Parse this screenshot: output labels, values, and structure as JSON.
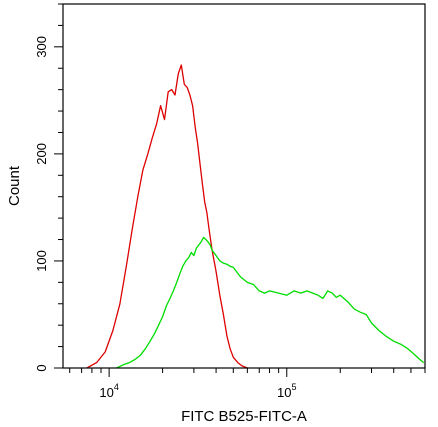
{
  "chart_data": {
    "type": "line",
    "title": "",
    "xlabel": "FITC B525-FITC-A",
    "ylabel": "Count",
    "x_scale": "log",
    "xlim": [
      5500,
      600000
    ],
    "ylim": [
      0,
      340
    ],
    "x_ticks": [
      {
        "value": 10000,
        "base": "10",
        "exp": "4"
      },
      {
        "value": 100000,
        "base": "10",
        "exp": "5"
      }
    ],
    "y_ticks": [
      {
        "value": 0,
        "label": "0"
      },
      {
        "value": 100,
        "label": "100"
      },
      {
        "value": 200,
        "label": "200"
      },
      {
        "value": 300,
        "label": "300"
      }
    ],
    "grid": false,
    "legend": "none",
    "series": [
      {
        "color": "#dd0000",
        "x": [
          7500,
          8500,
          9500,
          10500,
          11500,
          12500,
          13500,
          14500,
          15500,
          16500,
          17500,
          18500,
          19500,
          20500,
          21500,
          22500,
          23500,
          24500,
          25500,
          26500,
          27500,
          28500,
          29500,
          30500,
          31500,
          32500,
          33500,
          34500,
          35500,
          36500,
          38000,
          40000,
          42000,
          44000,
          46000,
          48000,
          50000,
          53000,
          56000,
          60000
        ],
        "y": [
          0,
          5,
          15,
          35,
          60,
          95,
          130,
          160,
          185,
          200,
          215,
          228,
          245,
          232,
          258,
          260,
          255,
          275,
          283,
          265,
          262,
          255,
          245,
          225,
          210,
          190,
          172,
          155,
          145,
          130,
          110,
          90,
          68,
          50,
          30,
          18,
          10,
          5,
          2,
          0
        ]
      },
      {
        "color": "#00dd00",
        "x": [
          11000,
          12000,
          13000,
          14000,
          15000,
          16000,
          17000,
          18000,
          19000,
          20000,
          21000,
          22000,
          23000,
          24000,
          25000,
          26000,
          27000,
          28000,
          29000,
          30000,
          31000,
          32000,
          33000,
          34000,
          35000,
          36000,
          37000,
          38000,
          40000,
          42000,
          44000,
          46000,
          48000,
          50000,
          55000,
          60000,
          65000,
          70000,
          75000,
          80000,
          90000,
          100000,
          110000,
          120000,
          130000,
          140000,
          150000,
          160000,
          170000,
          180000,
          190000,
          200000,
          220000,
          240000,
          260000,
          280000,
          300000,
          330000,
          360000,
          400000,
          440000,
          480000,
          520000,
          560000,
          590000
        ],
        "y": [
          0,
          3,
          5,
          8,
          12,
          18,
          25,
          32,
          40,
          48,
          58,
          65,
          72,
          80,
          88,
          95,
          100,
          103,
          108,
          105,
          112,
          115,
          118,
          122,
          120,
          118,
          115,
          110,
          105,
          100,
          98,
          97,
          95,
          94,
          85,
          80,
          78,
          72,
          70,
          72,
          70,
          68,
          72,
          70,
          72,
          70,
          68,
          65,
          72,
          70,
          66,
          68,
          62,
          55,
          52,
          50,
          42,
          35,
          30,
          25,
          22,
          18,
          13,
          8,
          5
        ]
      }
    ]
  }
}
